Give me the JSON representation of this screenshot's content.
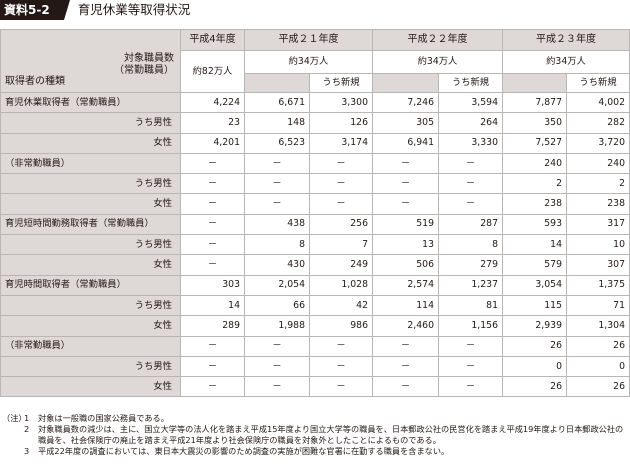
{
  "title": {
    "label": "資料5-2",
    "text": "育児休業等取得状況"
  },
  "header": {
    "years": [
      "平成4年度",
      "平成２１年度",
      "平成２２年度",
      "平成２３年度"
    ],
    "target_label_line1": "対象職員数",
    "target_label_line2": "（常勤職員）",
    "kind_label": "取得者の種類",
    "target_values": [
      "約82万人",
      "約34万人",
      "約34万人",
      "約34万人"
    ],
    "new_label": "うち新規"
  },
  "rows": [
    {
      "cat": "育児休業取得者（常勤職員）",
      "sub": "",
      "v": [
        "4,224",
        "6,671",
        "3,300",
        "7,246",
        "3,594",
        "7,877",
        "4,002"
      ]
    },
    {
      "cat": "",
      "sub": "うち男性",
      "v": [
        "23",
        "148",
        "126",
        "305",
        "264",
        "350",
        "282"
      ]
    },
    {
      "cat": "",
      "sub": "女性",
      "v": [
        "4,201",
        "6,523",
        "3,174",
        "6,941",
        "3,330",
        "7,527",
        "3,720"
      ]
    },
    {
      "cat": "（非常勤職員）",
      "sub": "",
      "v": [
        "－",
        "－",
        "－",
        "－",
        "－",
        "240",
        "240"
      ]
    },
    {
      "cat": "",
      "sub": "うち男性",
      "v": [
        "－",
        "－",
        "－",
        "－",
        "－",
        "2",
        "2"
      ]
    },
    {
      "cat": "",
      "sub": "女性",
      "v": [
        "－",
        "－",
        "－",
        "－",
        "－",
        "238",
        "238"
      ]
    },
    {
      "cat": "育児短時間勤務取得者（常勤職員）",
      "sub": "",
      "v": [
        "－",
        "438",
        "256",
        "519",
        "287",
        "593",
        "317"
      ]
    },
    {
      "cat": "",
      "sub": "うち男性",
      "v": [
        "－",
        "8",
        "7",
        "13",
        "8",
        "14",
        "10"
      ]
    },
    {
      "cat": "",
      "sub": "女性",
      "v": [
        "－",
        "430",
        "249",
        "506",
        "279",
        "579",
        "307"
      ]
    },
    {
      "cat": "育児時間取得者（常勤職員）",
      "sub": "",
      "v": [
        "303",
        "2,054",
        "1,028",
        "2,574",
        "1,237",
        "3,054",
        "1,375"
      ]
    },
    {
      "cat": "",
      "sub": "うち男性",
      "v": [
        "14",
        "66",
        "42",
        "114",
        "81",
        "115",
        "71"
      ]
    },
    {
      "cat": "",
      "sub": "女性",
      "v": [
        "289",
        "1,988",
        "986",
        "2,460",
        "1,156",
        "2,939",
        "1,304"
      ]
    },
    {
      "cat": "（非常勤職員）",
      "sub": "",
      "v": [
        "－",
        "－",
        "－",
        "－",
        "－",
        "26",
        "26"
      ]
    },
    {
      "cat": "",
      "sub": "うち男性",
      "v": [
        "－",
        "－",
        "－",
        "－",
        "－",
        "0",
        "0"
      ]
    },
    {
      "cat": "",
      "sub": "女性",
      "v": [
        "－",
        "－",
        "－",
        "－",
        "－",
        "26",
        "26"
      ]
    }
  ],
  "notes": {
    "mark": "（注）",
    "items": [
      {
        "no": "1",
        "text": "対象は一般職の国家公務員である。"
      },
      {
        "no": "2",
        "text": "対象職員数の減少は、主に、国立大学等の法人化を踏まえ平成15年度より国立大学等の職員を、日本郵政公社の民営化を踏まえ平成19年度より日本郵政公社の職員を、社会保険庁の廃止を踏まえ平成21年度より社会保険庁の職員を対象外としたことによるものである。"
      },
      {
        "no": "3",
        "text": "平成22年度の調査においては、東日本大震災の影響のため調査の実施が困難な官署に在勤する職員を含まない。"
      }
    ]
  }
}
